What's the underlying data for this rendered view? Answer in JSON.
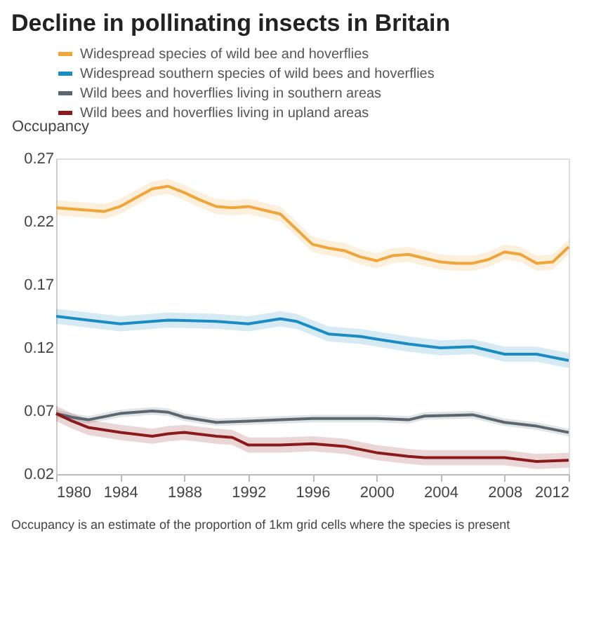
{
  "chart_data": {
    "type": "line",
    "title": "Decline in pollinating insects in Britain",
    "ylabel": "Occupancy",
    "xlim": [
      1980,
      2012
    ],
    "xticks": [
      1980,
      1984,
      1988,
      1992,
      1996,
      2000,
      2004,
      2008,
      2012
    ],
    "ylim": [
      0.02,
      0.27
    ],
    "yticks": [
      0.02,
      0.07,
      0.12,
      0.17,
      0.22,
      0.27
    ],
    "grid": false,
    "legend": "top",
    "line_style": "solid",
    "marker": "none",
    "annotations": [
      "Occupancy is an estimate of the proportion of 1km grid cells where the species is present"
    ],
    "series": [
      {
        "name": "Widespread species of wild bee and hoverflies",
        "color": "#f0a53a",
        "x": [
          1980,
          1981,
          1982,
          1983,
          1984,
          1985,
          1986,
          1987,
          1988,
          1989,
          1990,
          1991,
          1992,
          1993,
          1994,
          1995,
          1996,
          1997,
          1998,
          1999,
          2000,
          2001,
          2002,
          2003,
          2004,
          2005,
          2006,
          2007,
          2008,
          2009,
          2010,
          2011,
          2012
        ],
        "values": [
          0.231,
          0.23,
          0.229,
          0.228,
          0.232,
          0.239,
          0.246,
          0.248,
          0.243,
          0.237,
          0.232,
          0.231,
          0.232,
          0.229,
          0.226,
          0.214,
          0.202,
          0.199,
          0.197,
          0.192,
          0.189,
          0.193,
          0.194,
          0.191,
          0.188,
          0.187,
          0.187,
          0.19,
          0.196,
          0.194,
          0.187,
          0.188,
          0.2
        ],
        "lower": [
          0.225,
          0.224,
          0.223,
          0.222,
          0.226,
          0.233,
          0.24,
          0.242,
          0.237,
          0.231,
          0.226,
          0.225,
          0.226,
          0.223,
          0.22,
          0.208,
          0.196,
          0.193,
          0.191,
          0.186,
          0.183,
          0.187,
          0.188,
          0.185,
          0.182,
          0.181,
          0.181,
          0.184,
          0.19,
          0.188,
          0.181,
          0.182,
          0.194
        ],
        "upper": [
          0.237,
          0.236,
          0.235,
          0.234,
          0.238,
          0.245,
          0.252,
          0.254,
          0.249,
          0.243,
          0.238,
          0.237,
          0.238,
          0.235,
          0.232,
          0.22,
          0.208,
          0.205,
          0.203,
          0.198,
          0.195,
          0.199,
          0.2,
          0.197,
          0.194,
          0.193,
          0.193,
          0.196,
          0.202,
          0.2,
          0.193,
          0.194,
          0.206
        ]
      },
      {
        "name": "Widespread southern species of wild bees and hoverflies",
        "color": "#1a8cc4",
        "x": [
          1980,
          1982,
          1984,
          1987,
          1990,
          1992,
          1994,
          1995,
          1996,
          1997,
          1999,
          2000,
          2002,
          2004,
          2006,
          2008,
          2010,
          2012
        ],
        "values": [
          0.145,
          0.142,
          0.139,
          0.142,
          0.141,
          0.139,
          0.143,
          0.141,
          0.136,
          0.131,
          0.129,
          0.127,
          0.123,
          0.12,
          0.121,
          0.115,
          0.115,
          0.11
        ],
        "lower": [
          0.139,
          0.136,
          0.133,
          0.136,
          0.135,
          0.133,
          0.137,
          0.135,
          0.13,
          0.125,
          0.123,
          0.121,
          0.117,
          0.114,
          0.115,
          0.109,
          0.109,
          0.104
        ],
        "upper": [
          0.151,
          0.148,
          0.145,
          0.148,
          0.147,
          0.145,
          0.149,
          0.147,
          0.142,
          0.137,
          0.135,
          0.133,
          0.129,
          0.126,
          0.127,
          0.121,
          0.121,
          0.116
        ]
      },
      {
        "name": "Wild bees and hoverflies living in southern areas",
        "color": "#5b6770",
        "x": [
          1980,
          1981,
          1982,
          1984,
          1986,
          1987,
          1988,
          1990,
          1992,
          1994,
          1996,
          2000,
          2002,
          2003,
          2006,
          2008,
          2010,
          2012
        ],
        "values": [
          0.068,
          0.065,
          0.063,
          0.068,
          0.07,
          0.069,
          0.065,
          0.061,
          0.062,
          0.063,
          0.064,
          0.064,
          0.063,
          0.066,
          0.067,
          0.061,
          0.058,
          0.053
        ],
        "lower": [
          0.065,
          0.062,
          0.06,
          0.065,
          0.067,
          0.066,
          0.062,
          0.058,
          0.059,
          0.06,
          0.061,
          0.061,
          0.06,
          0.063,
          0.064,
          0.058,
          0.055,
          0.05
        ],
        "upper": [
          0.071,
          0.068,
          0.066,
          0.071,
          0.073,
          0.072,
          0.068,
          0.064,
          0.065,
          0.066,
          0.067,
          0.067,
          0.066,
          0.069,
          0.07,
          0.064,
          0.061,
          0.056
        ]
      },
      {
        "name": "Wild bees and hoverflies living in upland areas",
        "color": "#8b1a1a",
        "x": [
          1980,
          1981,
          1982,
          1984,
          1986,
          1987,
          1988,
          1990,
          1991,
          1992,
          1994,
          1996,
          1998,
          2000,
          2002,
          2003,
          2006,
          2008,
          2010,
          2012
        ],
        "values": [
          0.068,
          0.062,
          0.057,
          0.053,
          0.05,
          0.052,
          0.053,
          0.05,
          0.049,
          0.043,
          0.043,
          0.044,
          0.042,
          0.037,
          0.034,
          0.033,
          0.033,
          0.033,
          0.03,
          0.031
        ],
        "lower": [
          0.062,
          0.056,
          0.051,
          0.047,
          0.044,
          0.046,
          0.047,
          0.044,
          0.043,
          0.037,
          0.037,
          0.038,
          0.036,
          0.031,
          0.028,
          0.027,
          0.027,
          0.027,
          0.024,
          0.025
        ],
        "upper": [
          0.074,
          0.068,
          0.063,
          0.059,
          0.056,
          0.058,
          0.059,
          0.056,
          0.055,
          0.049,
          0.049,
          0.05,
          0.048,
          0.043,
          0.04,
          0.039,
          0.039,
          0.039,
          0.036,
          0.037
        ]
      }
    ]
  }
}
